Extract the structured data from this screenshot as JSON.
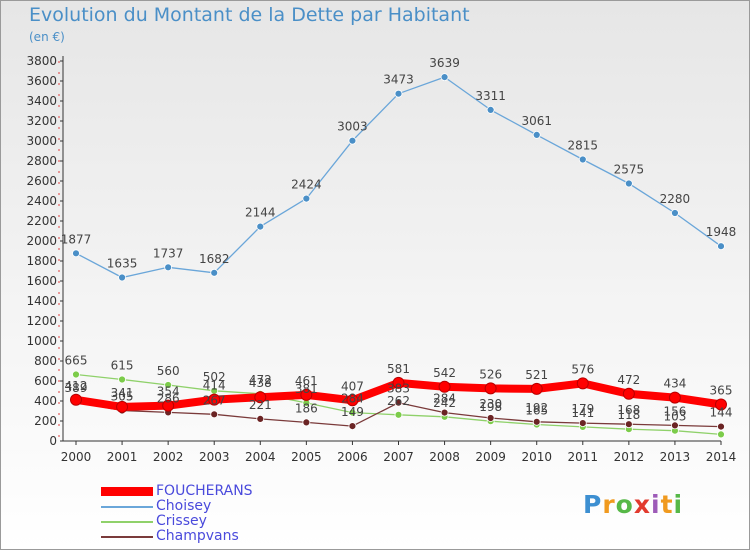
{
  "title": "Evolution du Montant de la Dette par Habitant",
  "subtitle": "(en €)",
  "logo": "Proxiti",
  "chart_data": {
    "type": "line",
    "x": [
      "2000",
      "2001",
      "2002",
      "2003",
      "2004",
      "2005",
      "2006",
      "2007",
      "2008",
      "2009",
      "2010",
      "2011",
      "2012",
      "2013",
      "2014"
    ],
    "ylim": [
      0,
      3800
    ],
    "yticks": [
      0,
      200,
      400,
      600,
      800,
      1000,
      1200,
      1400,
      1600,
      1800,
      2000,
      2200,
      2400,
      2600,
      2800,
      3000,
      3200,
      3400,
      3600,
      3800
    ],
    "grid": false,
    "legend": "bottom-left",
    "series": [
      {
        "name": "FOUCHERANS",
        "color": "#ff0000",
        "marker_color": "#ff0000",
        "values": [
          412,
          341,
          354,
          414,
          438,
          461,
          407,
          581,
          542,
          526,
          521,
          576,
          472,
          434,
          365
        ],
        "labels": [
          "412",
          "341",
          "354",
          "414",
          "438",
          "461",
          "407",
          "581",
          "542",
          "526",
          "521",
          "576",
          "472",
          "434",
          "365"
        ]
      },
      {
        "name": "Choisey",
        "color": "#6aa6d9",
        "marker_color": "#4a8fc7",
        "values": [
          1877,
          1635,
          1737,
          1682,
          2144,
          2424,
          3003,
          3473,
          3639,
          3311,
          3061,
          2815,
          2575,
          2280,
          1948
        ],
        "labels": [
          "1877",
          "1635",
          "1737",
          "1682",
          "2144",
          "2424",
          "3003",
          "3473",
          "3639",
          "3311",
          "3061",
          "2815",
          "2575",
          "2280",
          "1948"
        ]
      },
      {
        "name": "Crissey",
        "color": "#8fd16a",
        "marker_color": "#7ccc4a",
        "values": [
          665,
          615,
          560,
          502,
          472,
          381,
          284,
          262,
          242,
          198,
          165,
          141,
          118,
          103,
          66
        ],
        "labels": [
          "665",
          "615",
          "560",
          "502",
          "472",
          "381",
          "284",
          "262",
          "242",
          "198",
          "165",
          "141",
          "118",
          "103",
          ""
        ]
      },
      {
        "name": "Champvans",
        "color": "#7a3a3a",
        "marker_color": "#6b2424",
        "values": [
          389,
          305,
          286,
          267,
          221,
          186,
          149,
          383,
          284,
          230,
          192,
          179,
          168,
          156,
          144
        ],
        "labels": [
          "389",
          "305",
          "286",
          "267",
          "221",
          "186",
          "149",
          "383",
          "284",
          "230",
          "192",
          "179",
          "168",
          "156",
          "144"
        ]
      }
    ]
  }
}
